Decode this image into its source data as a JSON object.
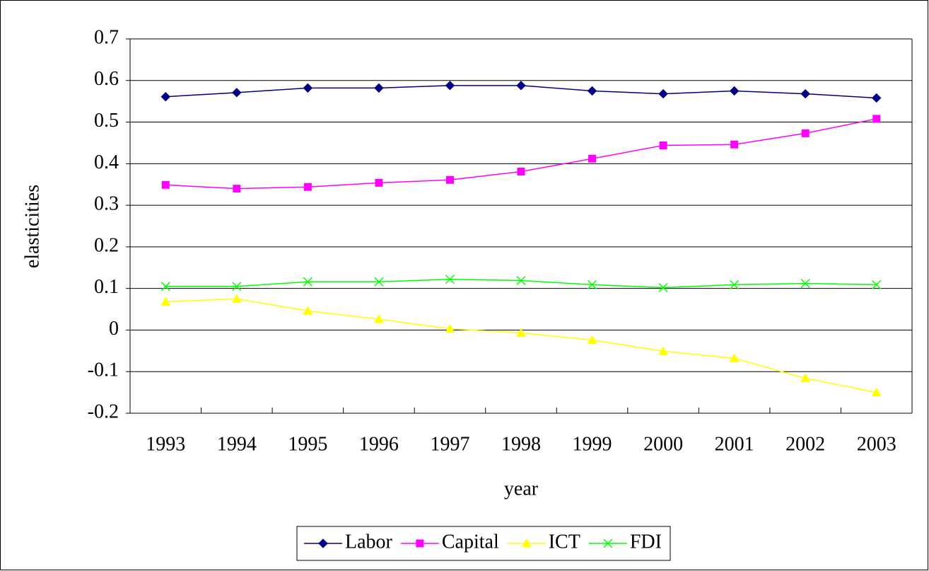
{
  "chart_data": {
    "type": "line",
    "categories": [
      "1993",
      "1994",
      "1995",
      "1996",
      "1997",
      "1998",
      "1999",
      "2000",
      "2001",
      "2002",
      "2003"
    ],
    "series": [
      {
        "name": "Labor",
        "color": "#000080",
        "marker": "diamond",
        "values": [
          0.561,
          0.571,
          0.582,
          0.582,
          0.588,
          0.588,
          0.575,
          0.568,
          0.575,
          0.568,
          0.558
        ]
      },
      {
        "name": "Capital",
        "color": "#ff00ff",
        "marker": "square",
        "values": [
          0.349,
          0.34,
          0.344,
          0.354,
          0.361,
          0.381,
          0.412,
          0.444,
          0.446,
          0.473,
          0.508
        ]
      },
      {
        "name": "ICT",
        "color": "#ffff00",
        "marker": "triangle",
        "values": [
          0.068,
          0.075,
          0.046,
          0.026,
          0.003,
          -0.007,
          -0.024,
          -0.051,
          -0.068,
          -0.116,
          -0.15
        ]
      },
      {
        "name": "FDI",
        "color": "#00ff00",
        "marker": "x",
        "values": [
          0.105,
          0.105,
          0.116,
          0.116,
          0.122,
          0.119,
          0.109,
          0.102,
          0.109,
          0.112,
          0.109
        ]
      }
    ],
    "xlabel": "year",
    "ylabel": "elasticities",
    "ylim": [
      -0.2,
      0.7
    ],
    "yticks": [
      -0.2,
      -0.1,
      0,
      0.1,
      0.2,
      0.3,
      0.4,
      0.5,
      0.6,
      0.7
    ],
    "grid": true,
    "legend": "bottom"
  }
}
